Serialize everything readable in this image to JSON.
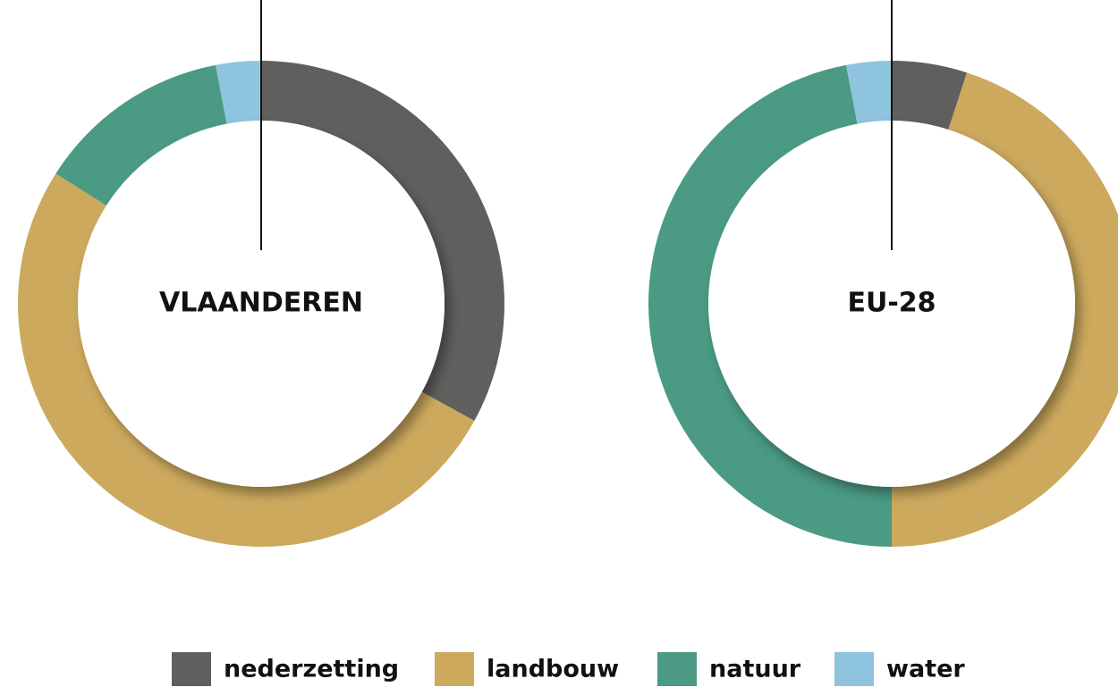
{
  "chart_data": [
    {
      "type": "donut",
      "title": "VLAANDEREN",
      "categories": [
        "nederzetting",
        "landbouw",
        "natuur",
        "water"
      ],
      "values": [
        33,
        51,
        13,
        3
      ],
      "colors": [
        "#605f5d",
        "#cca95d",
        "#4a9a84",
        "#8ec4de"
      ]
    },
    {
      "type": "donut",
      "title": "EU-28",
      "categories": [
        "nederzetting",
        "landbouw",
        "natuur",
        "water"
      ],
      "values": [
        5,
        45,
        47,
        3
      ],
      "colors": [
        "#605f5d",
        "#cca95d",
        "#4a9a84",
        "#8ec4de"
      ]
    }
  ]
}
